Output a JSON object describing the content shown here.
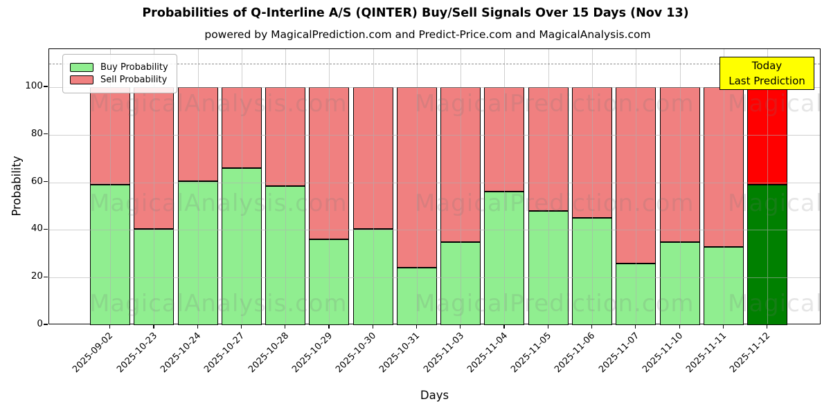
{
  "title": "Probabilities of Q-Interline A/S (QINTER) Buy/Sell Signals Over 15 Days (Nov 13)",
  "subtitle": "powered by MagicalPrediction.com and Predict-Price.com and MagicalAnalysis.com",
  "legend": {
    "items": [
      {
        "label": "Buy Probability",
        "color": "#90EE90"
      },
      {
        "label": "Sell Probability",
        "color": "#F08080"
      }
    ]
  },
  "annotation_box": {
    "line1": "Today",
    "line2": "Last Prediction",
    "bg_color": "#FFFF00"
  },
  "watermark": {
    "left_text": "MagicalAnalysis.com",
    "right_text": "MagicalPrediction.com"
  },
  "axes": {
    "xlabel": "Days",
    "ylabel": "Probability",
    "yticks": [
      0,
      20,
      40,
      60,
      80,
      100
    ],
    "ytick_labels": [
      "0",
      "20",
      "40",
      "60",
      "80",
      "100"
    ],
    "ylim": [
      0,
      116
    ],
    "dashed_hline": 110,
    "grid": true
  },
  "chart_data": {
    "type": "bar",
    "stacked": true,
    "title": "Probabilities of Q-Interline A/S (QINTER) Buy/Sell Signals Over 15 Days (Nov 13)",
    "xlabel": "Days",
    "ylabel": "Probability",
    "ylim": [
      0,
      116
    ],
    "grid": true,
    "legend_position": "upper left",
    "dashed_hline": 110,
    "categories": [
      "2025-09-02",
      "2025-10-23",
      "2025-10-24",
      "2025-10-27",
      "2025-10-28",
      "2025-10-29",
      "2025-10-30",
      "2025-10-31",
      "2025-11-03",
      "2025-11-04",
      "2025-11-05",
      "2025-11-06",
      "2025-11-07",
      "2025-11-10",
      "2025-11-11",
      "2025-11-12"
    ],
    "series": [
      {
        "name": "Buy Probability",
        "color": "#90EE90",
        "values": [
          59,
          40.5,
          60.5,
          66,
          58.5,
          36,
          40.5,
          24,
          35,
          56,
          48,
          45,
          26,
          35,
          33,
          59
        ]
      },
      {
        "name": "Sell Probability",
        "color": "#F08080",
        "values": [
          41,
          59.5,
          39.5,
          34,
          41.5,
          64,
          59.5,
          76,
          65,
          44,
          52,
          55,
          74,
          65,
          67,
          41
        ]
      }
    ],
    "final_bar": {
      "index": 15,
      "buy_color": "#008000",
      "sell_color": "#FF0000"
    },
    "annotations": [
      {
        "text": "Today / Last Prediction",
        "position": "top-right"
      }
    ]
  }
}
